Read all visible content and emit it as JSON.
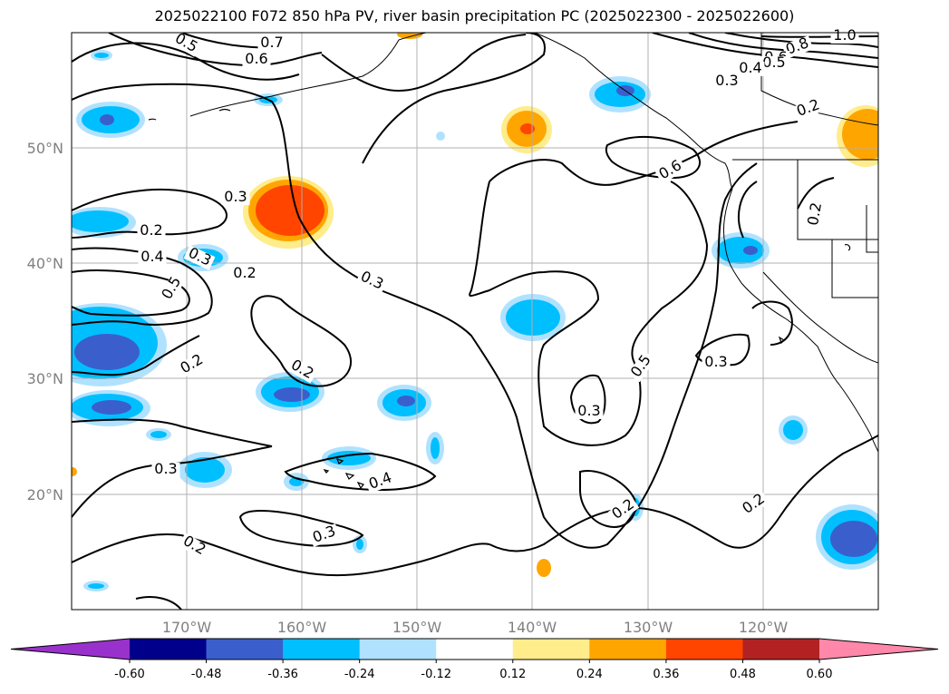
{
  "title": "2025022100 F072 850 hPa PV, river basin precipitation PC (2025022300 - 2025022600)",
  "chart_data": {
    "type": "contour map",
    "title": "2025022100 F072 850 hPa PV, river basin precipitation PC (2025022300 - 2025022600)",
    "latitude_ticks": [
      "50°N",
      "40°N",
      "30°N",
      "20°N"
    ],
    "longitude_ticks": [
      "170°W",
      "160°W",
      "150°W",
      "140°W",
      "130°W",
      "120°W"
    ],
    "lon_range": [
      -180,
      -110
    ],
    "lat_range": [
      10,
      60
    ],
    "grid": true,
    "pv_contour_labels": [
      "0.5",
      "0.7",
      "0.6",
      "0.8",
      "1.0",
      "0.6",
      "0.5",
      "0.4",
      "0.3",
      "0.2",
      "0.6",
      "0.2",
      "0.4",
      "0.3",
      "0.5",
      "0.3",
      "0.2",
      "0.2",
      "0.3",
      "0.4",
      "0.5",
      "0.3",
      "0.3",
      "0.2",
      "0.3",
      "0.2",
      "0.2",
      "0.2",
      "0.2",
      "0.3"
    ],
    "colorbar": {
      "orientation": "horizontal",
      "extend": "both",
      "ticks": [
        "-0.60",
        "-0.48",
        "-0.36",
        "-0.24",
        "-0.12",
        "0.12",
        "0.24",
        "0.36",
        "0.48",
        "0.60"
      ],
      "colors": [
        "#9932cc",
        "#00008b",
        "#3a5fcd",
        "#00bfff",
        "#b0e2ff",
        "#ffffff",
        "#ffec8b",
        "#ffa500",
        "#ff4500",
        "#b22222",
        "#ff88aa"
      ]
    }
  }
}
